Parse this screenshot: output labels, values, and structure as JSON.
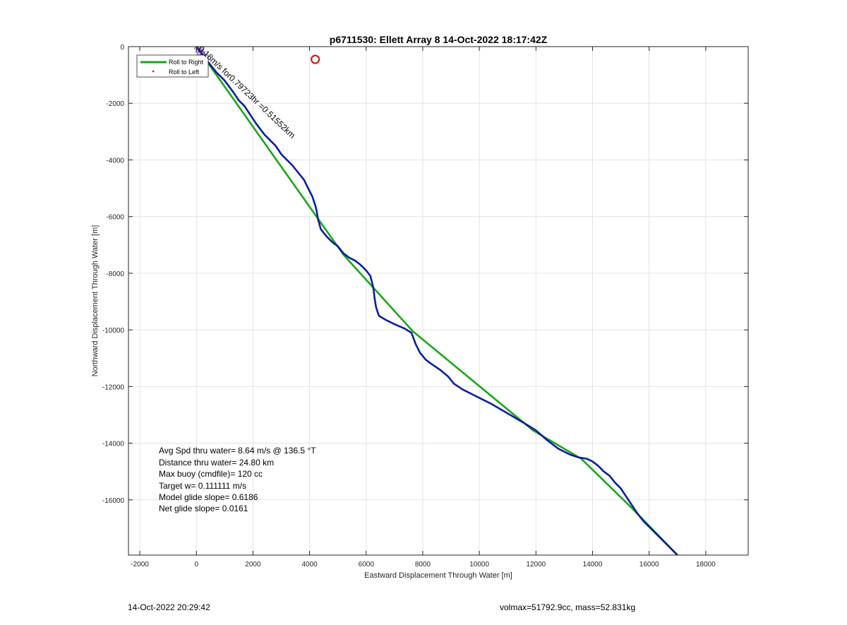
{
  "chart_data": {
    "type": "line",
    "title": "p6711530: Ellett Array 8 14-Oct-2022 18:17:42Z",
    "xlabel": "Eastward Displacement Through Water [m]",
    "ylabel": "Northward Displacement Through Water [m]",
    "xlim": [
      -2400,
      19500
    ],
    "ylim": [
      -17950,
      0
    ],
    "xticks": [
      -2000,
      0,
      2000,
      4000,
      6000,
      8000,
      10000,
      12000,
      14000,
      16000,
      18000
    ],
    "xtick_labels": [
      "-2000",
      "0",
      "2000",
      "4000",
      "6000",
      "8000",
      "10000",
      "12000",
      "14000",
      "16000",
      "18000"
    ],
    "yticks": [
      0,
      -2000,
      -4000,
      -6000,
      -8000,
      -10000,
      -12000,
      -14000,
      -16000
    ],
    "ytick_labels": [
      "0",
      "-2000",
      "-4000",
      "-6000",
      "-8000",
      "-10000",
      "-12000",
      "-14000",
      "-16000"
    ],
    "grid": true,
    "legend_position": "top-left",
    "legend": [
      "Roll to Right",
      "Roll to Left"
    ],
    "colors": {
      "roll_right": "#19a619",
      "track": "#0a1ea0",
      "roll_left": "#e02020",
      "marker": "#c81e1e"
    },
    "series": [
      {
        "name": "Roll to Right",
        "x": [
          0,
          5200,
          7650,
          11900,
          13600,
          15400,
          17050
        ],
        "y": [
          0,
          -7350,
          -10050,
          -13550,
          -14550,
          -16300,
          -18000
        ]
      },
      {
        "x": [
          0,
          300,
          700,
          1000,
          1300,
          1500,
          1700,
          1900,
          2100,
          2400,
          2600,
          2800,
          3000,
          3200,
          3400,
          3600,
          3800,
          3950,
          4100,
          4200,
          4250,
          4300,
          4400,
          4600,
          4800,
          5000,
          5200,
          5400,
          5600,
          5800,
          6000,
          6150,
          6250,
          6300,
          6350,
          6450,
          6700,
          7000,
          7350,
          7600,
          7750,
          7900,
          8100,
          8300,
          8600,
          8900,
          9100,
          9400,
          9800,
          10400,
          11000,
          11600,
          12000,
          12400,
          12800,
          13200,
          13500,
          13800,
          14000,
          14200,
          14400,
          14600,
          14800,
          15000,
          15200,
          15400,
          15600,
          15800,
          16100,
          16400,
          16700,
          17050
        ],
        "y": [
          0,
          -400,
          -900,
          -1200,
          -1600,
          -1900,
          -2100,
          -2400,
          -2700,
          -3100,
          -3300,
          -3500,
          -3800,
          -4000,
          -4200,
          -4450,
          -4700,
          -5000,
          -5300,
          -5600,
          -5800,
          -6100,
          -6450,
          -6700,
          -6900,
          -7050,
          -7300,
          -7450,
          -7550,
          -7700,
          -7900,
          -8100,
          -8500,
          -8900,
          -9200,
          -9500,
          -9650,
          -9800,
          -9950,
          -10100,
          -10500,
          -10800,
          -11050,
          -11200,
          -11400,
          -11650,
          -11900,
          -12100,
          -12300,
          -12600,
          -12950,
          -13300,
          -13550,
          -13900,
          -14200,
          -14400,
          -14500,
          -14550,
          -14650,
          -14800,
          -15000,
          -15150,
          -15400,
          -15600,
          -15900,
          -16200,
          -16500,
          -16750,
          -17050,
          -17350,
          -17650,
          -18000
        ]
      }
    ],
    "markers": [
      {
        "type": "circle",
        "x": 4200,
        "y": -450
      },
      {
        "type": "start-cluster",
        "x": 0,
        "y": 0
      }
    ],
    "annotations": [
      {
        "text": "0.18m/s for0.79723hr =0.51552km",
        "x": 0,
        "y": 0,
        "rotation_deg": 43.5
      }
    ],
    "stats_box": [
      "Avg Spd thru water=  8.64 m/s @ 136.5 °T",
      "Distance thru water= 24.80 km",
      "Max buoy (cmdfile)= 120 cc",
      "Target w= 0.111111 m/s",
      "Model glide slope= 0.6186",
      "Net glide slope= 0.0161"
    ]
  },
  "footer": {
    "timestamp": "14-Oct-2022 20:29:42",
    "volmax_mass": "volmax=51792.9cc, mass=52.831kg"
  }
}
